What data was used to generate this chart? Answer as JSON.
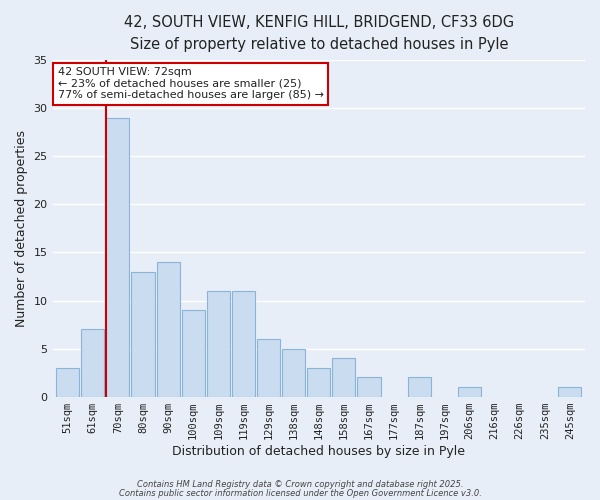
{
  "title_line1": "42, SOUTH VIEW, KENFIG HILL, BRIDGEND, CF33 6DG",
  "title_line2": "Size of property relative to detached houses in Pyle",
  "bar_labels": [
    "51sqm",
    "61sqm",
    "70sqm",
    "80sqm",
    "90sqm",
    "100sqm",
    "109sqm",
    "119sqm",
    "129sqm",
    "138sqm",
    "148sqm",
    "158sqm",
    "167sqm",
    "177sqm",
    "187sqm",
    "197sqm",
    "206sqm",
    "216sqm",
    "226sqm",
    "235sqm",
    "245sqm"
  ],
  "bar_values": [
    3,
    7,
    29,
    13,
    14,
    9,
    11,
    11,
    6,
    5,
    3,
    4,
    2,
    0,
    2,
    0,
    1,
    0,
    0,
    0,
    1
  ],
  "bar_color": "#c9dcf0",
  "bar_edge_color": "#8ab4d8",
  "highlight_bar_index": 2,
  "redline_x": 2,
  "redline_color": "#cc0000",
  "ylabel": "Number of detached properties",
  "xlabel": "Distribution of detached houses by size in Pyle",
  "ylim": [
    0,
    35
  ],
  "yticks": [
    0,
    5,
    10,
    15,
    20,
    25,
    30,
    35
  ],
  "annotation_title": "42 SOUTH VIEW: 72sqm",
  "annotation_line1": "← 23% of detached houses are smaller (25)",
  "annotation_line2": "77% of semi-detached houses are larger (85) →",
  "footer_line1": "Contains HM Land Registry data © Crown copyright and database right 2025.",
  "footer_line2": "Contains public sector information licensed under the Open Government Licence v3.0.",
  "background_color": "#e8eef8",
  "grid_color": "#ffffff",
  "title_fontsize": 10.5,
  "subtitle_fontsize": 9.5,
  "axis_label_fontsize": 9,
  "tick_fontsize": 7.5,
  "annotation_box_edge_color": "#cc0000",
  "annotation_box_face_color": "#ffffff",
  "annotation_fontsize": 8
}
